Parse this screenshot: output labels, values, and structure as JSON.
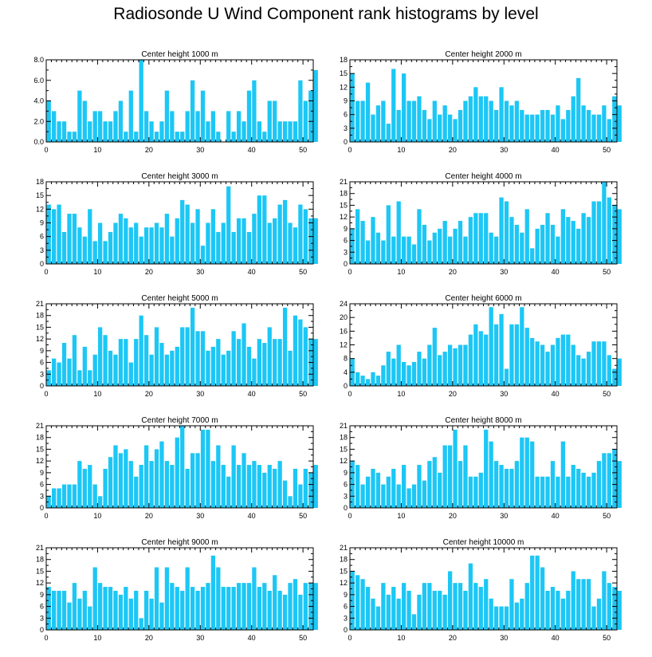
{
  "title": "Radiosonde U Wind Component rank histograms by level",
  "colors": {
    "bar": "#1cc7f5",
    "axis": "#000000"
  },
  "chart_data": [
    {
      "type": "bar",
      "title": "Center height 1000 m",
      "xticks": [
        0,
        10,
        20,
        30,
        40,
        50
      ],
      "xlim": [
        0,
        52
      ],
      "ylim": [
        0,
        8
      ],
      "yticks": [
        0,
        2,
        4,
        6,
        8
      ],
      "ytick_labels": [
        "0.0",
        "2.0",
        "4.0",
        "6.0",
        "8.0"
      ],
      "values": [
        4,
        3,
        2,
        2,
        1,
        1,
        5,
        4,
        2,
        3,
        3,
        2,
        2,
        3,
        4,
        1,
        5,
        1,
        8,
        3,
        2,
        1,
        2,
        5,
        3,
        1,
        1,
        3,
        6,
        3,
        5,
        2,
        3,
        1,
        0,
        3,
        1,
        3,
        2,
        5,
        6,
        2,
        1,
        4,
        4,
        2,
        2,
        2,
        2,
        6,
        4,
        5,
        7
      ]
    },
    {
      "type": "bar",
      "title": "Center height 2000 m",
      "xticks": [
        0,
        10,
        20,
        30,
        40,
        50
      ],
      "xlim": [
        0,
        52
      ],
      "ylim": [
        0,
        18
      ],
      "yticks": [
        0,
        3,
        6,
        9,
        12,
        15,
        18
      ],
      "ytick_labels": [
        "0",
        "3",
        "6",
        "9",
        "12",
        "15",
        "18"
      ],
      "values": [
        15,
        9,
        9,
        13,
        6,
        8,
        9,
        4,
        16,
        7,
        15,
        9,
        9,
        10,
        7,
        5,
        9,
        6,
        8,
        6,
        5,
        7,
        9,
        10,
        12,
        10,
        10,
        9,
        7,
        12,
        9,
        8,
        9,
        7,
        6,
        6,
        6,
        7,
        7,
        6,
        8,
        5,
        7,
        10,
        14,
        8,
        7,
        6,
        6,
        8,
        5,
        10,
        8
      ]
    },
    {
      "type": "bar",
      "title": "Center height 3000 m",
      "xticks": [
        0,
        10,
        20,
        30,
        40,
        50
      ],
      "xlim": [
        0,
        52
      ],
      "ylim": [
        0,
        18
      ],
      "yticks": [
        0,
        3,
        6,
        9,
        12,
        15,
        18
      ],
      "ytick_labels": [
        "0",
        "3",
        "6",
        "9",
        "12",
        "15",
        "18"
      ],
      "values": [
        13,
        12,
        13,
        7,
        11,
        11,
        8,
        6,
        12,
        5,
        9,
        5,
        7,
        9,
        11,
        10,
        8,
        9,
        6,
        8,
        8,
        9,
        8,
        11,
        6,
        10,
        14,
        13,
        9,
        12,
        4,
        9,
        12,
        7,
        9,
        17,
        7,
        10,
        10,
        7,
        11,
        15,
        15,
        9,
        10,
        13,
        14,
        9,
        8,
        13,
        12,
        10,
        10
      ]
    },
    {
      "type": "bar",
      "title": "Center height 4000 m",
      "xticks": [
        0,
        10,
        20,
        30,
        40,
        50
      ],
      "xlim": [
        0,
        52
      ],
      "ylim": [
        0,
        21
      ],
      "yticks": [
        0,
        3,
        6,
        9,
        12,
        15,
        18,
        21
      ],
      "ytick_labels": [
        "0",
        "3",
        "6",
        "9",
        "12",
        "15",
        "18",
        "21"
      ],
      "values": [
        9,
        14,
        11,
        6,
        12,
        8,
        6,
        15,
        7,
        16,
        7,
        7,
        5,
        14,
        10,
        6,
        8,
        9,
        11,
        7,
        9,
        11,
        7,
        12,
        13,
        13,
        13,
        8,
        7,
        17,
        16,
        12,
        10,
        8,
        14,
        4,
        9,
        10,
        13,
        10,
        7,
        14,
        12,
        11,
        9,
        13,
        12,
        16,
        16,
        21,
        17,
        15,
        14
      ]
    },
    {
      "type": "bar",
      "title": "Center height 5000 m",
      "xticks": [
        0,
        10,
        20,
        30,
        40,
        50
      ],
      "xlim": [
        0,
        52
      ],
      "ylim": [
        0,
        21
      ],
      "yticks": [
        0,
        3,
        6,
        9,
        12,
        15,
        18,
        21
      ],
      "ytick_labels": [
        "0",
        "3",
        "6",
        "9",
        "12",
        "15",
        "18",
        "21"
      ],
      "values": [
        4,
        7,
        6,
        11,
        7,
        13,
        4,
        10,
        4,
        8,
        15,
        13,
        9,
        8,
        12,
        12,
        6,
        12,
        18,
        13,
        8,
        15,
        11,
        8,
        9,
        10,
        15,
        15,
        20,
        14,
        14,
        9,
        10,
        12,
        8,
        9,
        14,
        12,
        16,
        10,
        7,
        12,
        11,
        15,
        12,
        12,
        20,
        9,
        18,
        17,
        15,
        12,
        12
      ]
    },
    {
      "type": "bar",
      "title": "Center height 6000 m",
      "xticks": [
        0,
        10,
        20,
        30,
        40,
        50
      ],
      "xlim": [
        0,
        52
      ],
      "ylim": [
        0,
        24
      ],
      "yticks": [
        0,
        4,
        8,
        12,
        16,
        20,
        24
      ],
      "ytick_labels": [
        "0",
        "4",
        "8",
        "12",
        "16",
        "20",
        "24"
      ],
      "values": [
        8,
        4,
        3,
        2,
        4,
        3,
        6,
        10,
        8,
        12,
        7,
        6,
        7,
        10,
        8,
        12,
        17,
        9,
        10,
        12,
        11,
        12,
        12,
        15,
        18,
        16,
        15,
        23,
        18,
        21,
        5,
        18,
        18,
        23,
        17,
        14,
        13,
        12,
        10,
        12,
        14,
        15,
        15,
        12,
        9,
        8,
        10,
        13,
        13,
        13,
        9,
        5,
        8
      ]
    },
    {
      "type": "bar",
      "title": "Center height 7000 m",
      "xticks": [
        0,
        10,
        20,
        30,
        40,
        50
      ],
      "xlim": [
        0,
        52
      ],
      "ylim": [
        0,
        21
      ],
      "yticks": [
        0,
        3,
        6,
        9,
        12,
        15,
        18,
        21
      ],
      "ytick_labels": [
        "0",
        "3",
        "6",
        "9",
        "12",
        "15",
        "18",
        "21"
      ],
      "values": [
        3,
        5,
        5,
        6,
        6,
        6,
        12,
        10,
        11,
        6,
        3,
        10,
        13,
        16,
        14,
        15,
        12,
        8,
        11,
        16,
        12,
        15,
        17,
        12,
        11,
        18,
        21,
        10,
        14,
        14,
        20,
        20,
        12,
        16,
        11,
        8,
        16,
        11,
        14,
        11,
        12,
        11,
        9,
        11,
        10,
        12,
        7,
        3,
        10,
        6,
        10,
        9,
        11
      ]
    },
    {
      "type": "bar",
      "title": "Center height 8000 m",
      "xticks": [
        0,
        10,
        20,
        30,
        40,
        50
      ],
      "xlim": [
        0,
        52
      ],
      "ylim": [
        0,
        21
      ],
      "yticks": [
        0,
        3,
        6,
        9,
        12,
        15,
        18,
        21
      ],
      "ytick_labels": [
        "0",
        "3",
        "6",
        "9",
        "12",
        "15",
        "18",
        "21"
      ],
      "values": [
        12,
        11,
        6,
        8,
        10,
        9,
        6,
        8,
        10,
        6,
        11,
        5,
        6,
        11,
        7,
        12,
        13,
        9,
        16,
        16,
        20,
        12,
        16,
        8,
        8,
        9,
        20,
        17,
        12,
        11,
        10,
        10,
        12,
        18,
        18,
        17,
        8,
        8,
        8,
        12,
        8,
        17,
        8,
        11,
        10,
        9,
        8,
        9,
        12,
        14,
        14,
        15,
        12
      ]
    },
    {
      "type": "bar",
      "title": "Center height 9000 m",
      "xticks": [
        0,
        10,
        20,
        30,
        40,
        50
      ],
      "xlim": [
        0,
        52
      ],
      "ylim": [
        0,
        21
      ],
      "yticks": [
        0,
        3,
        6,
        9,
        12,
        15,
        18,
        21
      ],
      "ytick_labels": [
        "0",
        "3",
        "6",
        "9",
        "12",
        "15",
        "18",
        "21"
      ],
      "values": [
        11,
        10,
        10,
        10,
        7,
        12,
        8,
        10,
        6,
        16,
        12,
        11,
        11,
        10,
        9,
        11,
        8,
        10,
        3,
        10,
        8,
        16,
        7,
        16,
        12,
        11,
        10,
        16,
        11,
        10,
        11,
        12,
        19,
        16,
        11,
        11,
        11,
        12,
        12,
        12,
        16,
        11,
        12,
        10,
        14,
        10,
        9,
        12,
        13,
        9,
        12,
        12,
        12
      ]
    },
    {
      "type": "bar",
      "title": "Center height 10000 m",
      "xticks": [
        0,
        10,
        20,
        30,
        40,
        50
      ],
      "xlim": [
        0,
        52
      ],
      "ylim": [
        0,
        21
      ],
      "yticks": [
        0,
        3,
        6,
        9,
        12,
        15,
        18,
        21
      ],
      "ytick_labels": [
        "0",
        "3",
        "6",
        "9",
        "12",
        "15",
        "18",
        "21"
      ],
      "values": [
        15,
        14,
        13,
        11,
        8,
        6,
        12,
        9,
        11,
        8,
        12,
        10,
        4,
        9,
        12,
        12,
        10,
        10,
        9,
        15,
        12,
        12,
        10,
        17,
        12,
        11,
        13,
        8,
        6,
        6,
        6,
        13,
        7,
        8,
        12,
        19,
        19,
        16,
        10,
        11,
        10,
        8,
        10,
        15,
        13,
        13,
        13,
        6,
        8,
        15,
        12,
        11,
        10
      ]
    }
  ]
}
